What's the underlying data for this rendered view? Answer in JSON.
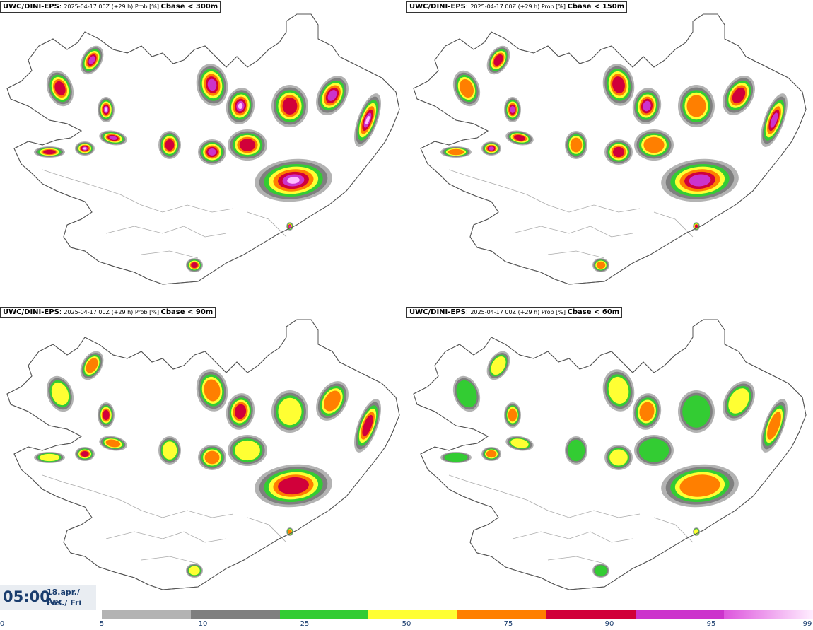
{
  "panels": [
    {
      "model": "UWC/DINI-EPS",
      "meta": "2025-04-17 00Z (+29 h) Prob [%]",
      "field": "Cbase < 300m",
      "intensity": 4
    },
    {
      "model": "UWC/DINI-EPS",
      "meta": "2025-04-17 00Z (+29 h) Prob [%]",
      "field": "Cbase < 150m",
      "intensity": 3
    },
    {
      "model": "UWC/DINI-EPS",
      "meta": "2025-04-17 00Z (+29 h) Prob [%]",
      "field": "Cbase < 90m",
      "intensity": 2
    },
    {
      "model": "UWC/DINI-EPS",
      "meta": "2025-04-17 00Z (+29 h) Prob [%]",
      "field": "Cbase < 60m",
      "intensity": 1
    }
  ],
  "valid_time": {
    "time": "05:00",
    "date": "18.apr./ Apr",
    "day": "Fös./ Fri"
  },
  "legend": {
    "ticks": [
      "0",
      "5",
      "10",
      "25",
      "50",
      "75",
      "90",
      "95",
      "99"
    ],
    "bins": [
      {
        "from": 5,
        "to": 10,
        "color": "#b3b3b3"
      },
      {
        "from": 10,
        "to": 25,
        "color": "#7f7f7f"
      },
      {
        "from": 25,
        "to": 50,
        "color": "#33cc33"
      },
      {
        "from": 50,
        "to": 75,
        "color": "#ffff33"
      },
      {
        "from": 75,
        "to": 90,
        "color": "#ff7f00"
      },
      {
        "from": 90,
        "to": 95,
        "color": "#d1003a"
      },
      {
        "from": 95,
        "to": 99,
        "color": "#cc33cc"
      },
      {
        "from": 99,
        "to": 100,
        "color": "#ffbbff"
      }
    ]
  }
}
